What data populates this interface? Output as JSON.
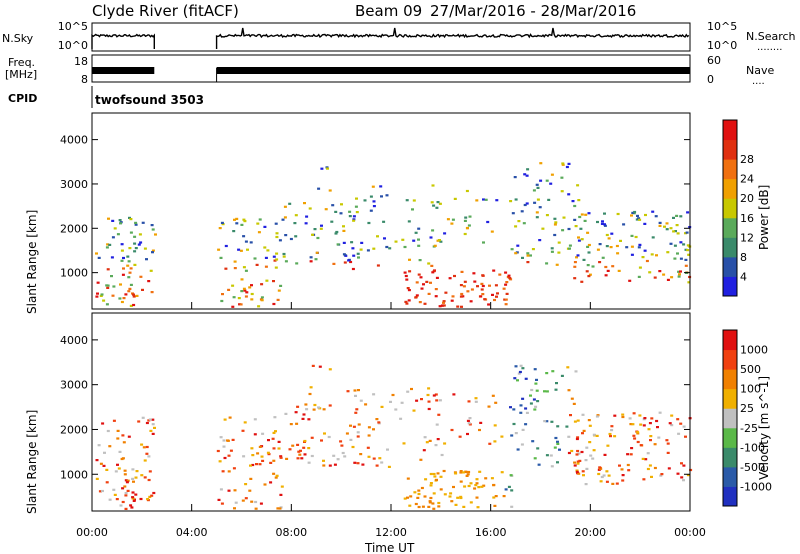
{
  "header": {
    "station": "Clyde River (fitACF)",
    "beam": "Beam 09",
    "date_range": "27/Mar/2016 - 28/Mar/2016"
  },
  "nsky_panel": {
    "label": "N.Sky",
    "left_ticks": [
      "10^5",
      "10^0"
    ],
    "right_ticks": [
      "10^5",
      "10^0"
    ],
    "right_label": "N.Search",
    "right_label_dots": "........"
  },
  "freq_panel": {
    "label_line1": "Freq.",
    "label_line2": "[MHz]",
    "left_ticks": [
      "18",
      "8"
    ],
    "right_ticks": [
      "60",
      "0"
    ],
    "right_label": "Nave",
    "right_label_dots": "...."
  },
  "cpid_panel": {
    "label": "CPID",
    "value": "twofsound 3503"
  },
  "chart_data": [
    {
      "type": "heatmap",
      "name": "power",
      "ylabel": "Slant Range [km]",
      "yticks": [
        1000,
        2000,
        3000,
        4000
      ],
      "ylim": [
        180,
        4600
      ],
      "colorbar": {
        "label": "Power [dB]",
        "ticks": [
          "4",
          "8",
          "12",
          "16",
          "20",
          "24",
          "28"
        ],
        "colors": [
          "#2020e0",
          "#2850a8",
          "#3a8a6a",
          "#5aaa5a",
          "#c8c800",
          "#f0a000",
          "#f07010",
          "#e03010",
          "#e01010"
        ]
      },
      "data_gaps_hours": [
        [
          2.5,
          5.0
        ]
      ]
    },
    {
      "type": "heatmap",
      "name": "velocity",
      "ylabel": "Slant Range [km]",
      "yticks": [
        1000,
        2000,
        3000,
        4000
      ],
      "ylim": [
        180,
        4600
      ],
      "xlabel": "Time UT",
      "xticks": [
        "00:00",
        "04:00",
        "08:00",
        "12:00",
        "16:00",
        "20:00",
        "00:00"
      ],
      "xlim_hours": [
        0,
        24
      ],
      "colorbar": {
        "label": "Velocity [m s^-1]",
        "ticks": [
          "1000",
          "500",
          "100",
          "25",
          "-25",
          "-100",
          "-500",
          "-1000"
        ],
        "colors": [
          "#2030c0",
          "#2a5aa8",
          "#3a8a6a",
          "#5ab848",
          "#c0c0c0",
          "#f0b000",
          "#f08000",
          "#f04010",
          "#e01010"
        ]
      },
      "data_gaps_hours": [
        [
          2.5,
          5.0
        ]
      ]
    }
  ]
}
